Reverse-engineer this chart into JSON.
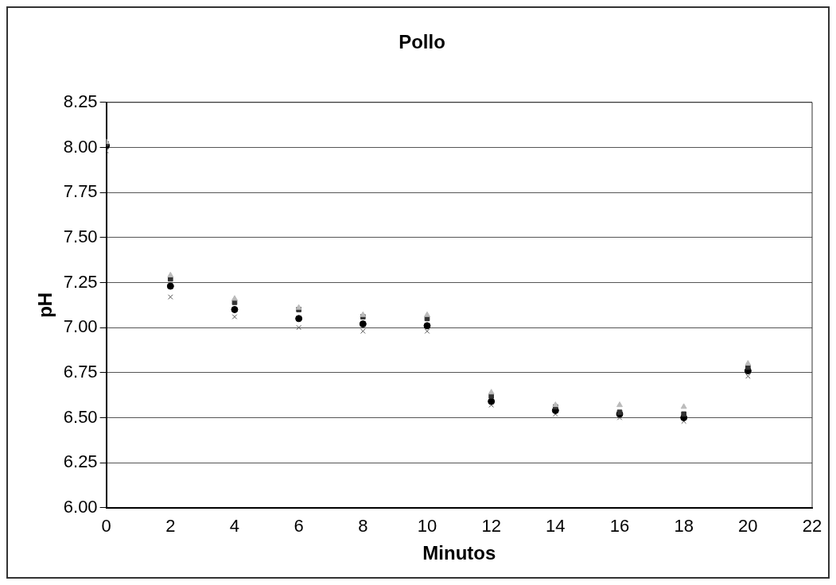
{
  "chart_data": {
    "type": "scatter",
    "title": "Pollo",
    "xlabel": "Minutos",
    "ylabel": "pH",
    "x": [
      0,
      2,
      4,
      6,
      8,
      10,
      12,
      14,
      16,
      18,
      20
    ],
    "series": [
      {
        "color": "#bbbbbb",
        "marker": "triangle",
        "values": [
          8.03,
          7.29,
          7.16,
          7.11,
          7.07,
          7.07,
          6.64,
          6.57,
          6.57,
          6.56,
          6.8
        ]
      },
      {
        "color": "#333333",
        "marker": "square",
        "values": [
          8.02,
          7.27,
          7.14,
          7.1,
          7.06,
          7.05,
          6.62,
          6.56,
          6.53,
          6.52,
          6.78
        ]
      },
      {
        "color": "#000000",
        "marker": "circle",
        "values": [
          8.01,
          7.23,
          7.1,
          7.05,
          7.02,
          7.01,
          6.59,
          6.54,
          6.52,
          6.5,
          6.76
        ]
      },
      {
        "color": "#555555",
        "marker": "cross",
        "values": [
          7.98,
          7.17,
          7.06,
          7.0,
          6.98,
          6.98,
          6.57,
          6.52,
          6.5,
          6.48,
          6.73
        ]
      }
    ],
    "xlim": [
      0,
      22
    ],
    "xticks": [
      0,
      2,
      4,
      6,
      8,
      10,
      12,
      14,
      16,
      18,
      20,
      22
    ],
    "ylim": [
      6,
      8.25
    ],
    "yticks": [
      {
        "value": 6,
        "label": "6.00"
      },
      {
        "value": 6.25,
        "label": "6.25"
      },
      {
        "value": 6.5,
        "label": "6.50"
      },
      {
        "value": 6.75,
        "label": "6.75"
      },
      {
        "value": 7,
        "label": "7.00"
      },
      {
        "value": 7.25,
        "label": "7.25"
      },
      {
        "value": 7.5,
        "label": "7.50"
      },
      {
        "value": 7.75,
        "label": "7.75"
      },
      {
        "value": 8,
        "label": "8.00"
      },
      {
        "value": 8.25,
        "label": "8.25"
      }
    ],
    "grid": "y",
    "legend": false
  }
}
